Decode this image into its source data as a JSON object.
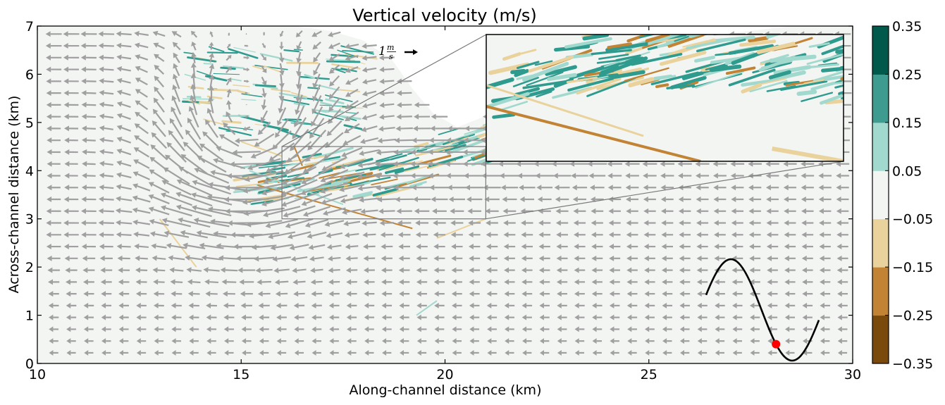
{
  "chart_data": {
    "type": "heatmap",
    "title": "Vertical velocity (m/s)",
    "xlabel": "Along-channel distance (km)",
    "ylabel": "Across-channel distance (km)",
    "xlim": [
      10,
      30
    ],
    "ylim": [
      0,
      7
    ],
    "x_ticks": [
      10,
      15,
      20,
      25,
      30
    ],
    "y_ticks": [
      0,
      1,
      2,
      3,
      4,
      5,
      6,
      7
    ],
    "colorbar": {
      "levels": [
        -0.35,
        -0.25,
        -0.15,
        -0.05,
        0.05,
        0.15,
        0.25,
        0.35
      ],
      "tick_labels": [
        "−0.35",
        "−0.25",
        "−0.15",
        "−0.05",
        "0.05",
        "0.15",
        "0.25",
        "0.35"
      ],
      "colors": [
        "#7a4a0c",
        "#c28434",
        "#ead29c",
        "#f3f5f3",
        "#a2d9ce",
        "#3e9b90",
        "#01594c"
      ]
    },
    "quiver_color": "#a0a0a0",
    "quiver_scale_label": "1 m/s",
    "quiver_scale_display": {
      "value": "1",
      "unit_num": "m",
      "unit_den": "s"
    },
    "zoom_box": {
      "x": [
        16,
        21
      ],
      "y": [
        3,
        4.5
      ]
    },
    "tidal_inset": {
      "marker_color": "#ff0000",
      "marker_phase": 0.62
    },
    "no_data_color": "#ffffff",
    "front_colors": {
      "positive": "#2f9b8e",
      "positive_light": "#a2d9ce",
      "negative": "#c28434",
      "negative_light": "#ead29c"
    }
  }
}
